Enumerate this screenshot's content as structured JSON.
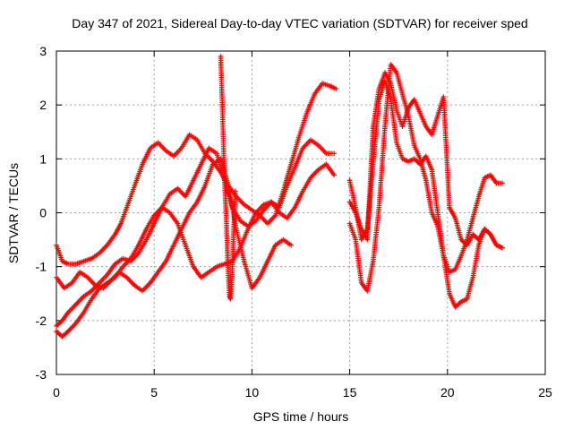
{
  "chart_data": {
    "type": "scatter",
    "title": "Day 347 of 2021, Sidereal Day-to-day VTEC variation (SDTVAR) for receiver sped",
    "xlabel": "GPS time / hours",
    "ylabel": "SDTVAR / TECUs",
    "xlim": [
      0,
      25
    ],
    "ylim": [
      -3,
      3
    ],
    "xticks": [
      0,
      5,
      10,
      15,
      20,
      25
    ],
    "yticks": [
      -3,
      -2,
      -1,
      0,
      1,
      2,
      3
    ],
    "grid": true,
    "marker": "+",
    "color": "#ff0000",
    "series": [
      {
        "name": "track-1",
        "x": [
          0.0,
          0.3,
          0.6,
          1.0,
          1.4,
          1.8,
          2.2,
          2.6,
          3.0,
          3.3,
          3.6,
          4.0,
          4.4,
          4.8,
          5.2,
          5.6,
          6.0,
          6.4,
          6.8,
          7.2,
          7.6,
          8.0,
          8.4,
          8.8,
          9.2,
          9.6,
          10.0,
          10.4,
          10.8,
          11.2,
          11.6,
          12.0,
          12.4,
          12.8,
          13.2,
          13.6,
          14.0,
          14.3
        ],
        "y": [
          -0.6,
          -0.9,
          -0.95,
          -0.95,
          -0.9,
          -0.85,
          -0.75,
          -0.6,
          -0.4,
          -0.2,
          0.1,
          0.5,
          0.9,
          1.2,
          1.3,
          1.15,
          1.05,
          1.2,
          1.45,
          1.35,
          1.1,
          0.95,
          0.75,
          0.5,
          0.3,
          0.15,
          0.05,
          -0.05,
          -0.2,
          -0.05,
          0.4,
          0.9,
          1.4,
          1.85,
          2.2,
          2.4,
          2.35,
          2.3
        ]
      },
      {
        "name": "track-2",
        "x": [
          0.0,
          0.3,
          0.6,
          1.0,
          1.4,
          1.8,
          2.2,
          2.6,
          3.0,
          3.4,
          3.8,
          4.2,
          4.6,
          5.0,
          5.4,
          5.8,
          6.2,
          6.6,
          7.0,
          7.4,
          7.8,
          8.2,
          8.6,
          9.0,
          9.4,
          9.8,
          10.2,
          10.6,
          11.0,
          11.4,
          11.8,
          12.2,
          12.6,
          13.0,
          13.4,
          13.8,
          14.2
        ],
        "y": [
          -2.1,
          -2.0,
          -1.85,
          -1.7,
          -1.55,
          -1.45,
          -1.3,
          -1.15,
          -0.95,
          -0.85,
          -0.9,
          -0.75,
          -0.5,
          -0.2,
          0.1,
          0.35,
          0.45,
          0.3,
          0.6,
          0.9,
          1.2,
          1.1,
          0.6,
          0.1,
          -0.15,
          -0.25,
          -0.15,
          0.05,
          0.2,
          0.1,
          0.5,
          0.85,
          1.2,
          1.35,
          1.25,
          1.1,
          1.1
        ]
      },
      {
        "name": "track-3",
        "x": [
          0.0,
          0.3,
          0.6,
          1.0,
          1.4,
          1.8,
          2.2,
          2.6,
          3.0,
          3.4,
          3.8,
          4.2,
          4.6,
          5.0,
          5.4,
          5.8,
          6.2,
          6.6,
          7.0,
          7.4,
          7.8,
          8.2,
          8.6,
          9.0,
          9.4,
          9.8,
          10.2,
          10.6,
          11.0,
          11.4,
          11.8,
          12.2,
          12.6,
          13.0,
          13.4,
          13.8,
          14.2
        ],
        "y": [
          -2.2,
          -2.3,
          -2.2,
          -2.05,
          -1.85,
          -1.6,
          -1.4,
          -1.3,
          -1.2,
          -1.0,
          -0.85,
          -0.6,
          -0.3,
          -0.05,
          0.1,
          0.0,
          -0.2,
          -0.6,
          -1.0,
          -1.2,
          -1.1,
          -1.0,
          -0.95,
          -0.9,
          -0.65,
          -0.3,
          0.0,
          0.15,
          0.2,
          0.0,
          -0.1,
          0.1,
          0.4,
          0.65,
          0.8,
          0.9,
          0.7
        ]
      },
      {
        "name": "track-4",
        "x": [
          0.0,
          0.4,
          0.8,
          1.2,
          1.6,
          2.0,
          2.4,
          2.8,
          3.2,
          3.6,
          4.0,
          4.4,
          4.8,
          5.2,
          5.6,
          6.0,
          6.4,
          6.8,
          7.2,
          7.6,
          8.0,
          8.4,
          8.8,
          9.2,
          9.6,
          10.0,
          10.4,
          10.8,
          11.2,
          11.6,
          12.0
        ],
        "y": [
          -1.2,
          -1.4,
          -1.3,
          -1.1,
          -1.2,
          -1.35,
          -1.4,
          -1.25,
          -1.1,
          -1.2,
          -1.35,
          -1.45,
          -1.3,
          -1.1,
          -0.9,
          -0.6,
          -0.3,
          0.0,
          0.2,
          0.5,
          0.9,
          1.0,
          0.5,
          -0.3,
          -0.9,
          -1.4,
          -1.2,
          -0.9,
          -0.6,
          -0.5,
          -0.6
        ]
      },
      {
        "name": "track-5",
        "x": [
          15.0,
          15.3,
          15.6,
          15.9,
          16.2,
          16.5,
          16.8,
          17.1,
          17.4,
          17.7,
          18.0,
          18.3,
          18.6,
          18.9,
          19.2,
          19.5,
          19.8,
          20.1,
          20.4,
          20.7,
          21.0,
          21.3,
          21.6,
          21.9,
          22.2,
          22.5,
          22.8
        ],
        "y": [
          0.2,
          0.0,
          -0.3,
          -0.5,
          1.6,
          2.3,
          2.6,
          2.4,
          1.9,
          1.6,
          1.95,
          2.1,
          1.85,
          1.6,
          1.45,
          1.8,
          2.15,
          0.1,
          -0.1,
          -0.5,
          -0.6,
          -0.4,
          -0.5,
          -0.3,
          -0.4,
          -0.6,
          -0.65
        ]
      },
      {
        "name": "track-6",
        "x": [
          15.0,
          15.3,
          15.6,
          15.9,
          16.2,
          16.5,
          16.8,
          17.1,
          17.4,
          17.7,
          18.0,
          18.3,
          18.6,
          18.9,
          19.2,
          19.5,
          19.8,
          20.1,
          20.4,
          20.7,
          21.0,
          21.3,
          21.6,
          21.9,
          22.2,
          22.5,
          22.8
        ],
        "y": [
          0.6,
          0.1,
          -0.5,
          -0.3,
          0.9,
          2.1,
          2.45,
          2.1,
          1.3,
          1.0,
          0.95,
          1.0,
          0.9,
          1.05,
          0.8,
          0.0,
          -0.8,
          -1.1,
          -1.05,
          -0.8,
          -0.5,
          -0.1,
          0.3,
          0.65,
          0.7,
          0.55,
          0.55
        ]
      },
      {
        "name": "track-7",
        "x": [
          15.0,
          15.3,
          15.6,
          15.9,
          16.2,
          16.5,
          16.8,
          17.1,
          17.4,
          17.7,
          18.0,
          18.3,
          18.6,
          18.9,
          19.2,
          19.5,
          19.8,
          20.1,
          20.4,
          20.7,
          21.0,
          21.3,
          21.6,
          21.9,
          22.2,
          22.5,
          22.8
        ],
        "y": [
          -0.2,
          -0.5,
          -1.3,
          -1.45,
          -0.9,
          0.1,
          1.6,
          2.75,
          2.6,
          2.2,
          1.8,
          1.25,
          1.0,
          0.6,
          0.0,
          -0.25,
          -0.8,
          -1.5,
          -1.75,
          -1.65,
          -1.6,
          -1.2,
          -0.6,
          -0.3,
          -0.4,
          -0.6,
          -0.65
        ]
      },
      {
        "name": "spikes",
        "x": [
          8.4,
          8.45,
          8.5,
          8.55,
          8.6,
          8.65,
          8.7,
          8.75,
          8.8,
          8.85,
          8.9,
          8.95,
          9.0,
          9.05,
          9.1,
          9.15
        ],
        "y": [
          2.9,
          2.4,
          1.8,
          1.2,
          0.6,
          0.2,
          -0.2,
          -0.8,
          -1.2,
          -1.55,
          -1.6,
          -1.4,
          -1.0,
          -0.5,
          0.0,
          0.4
        ]
      }
    ]
  }
}
